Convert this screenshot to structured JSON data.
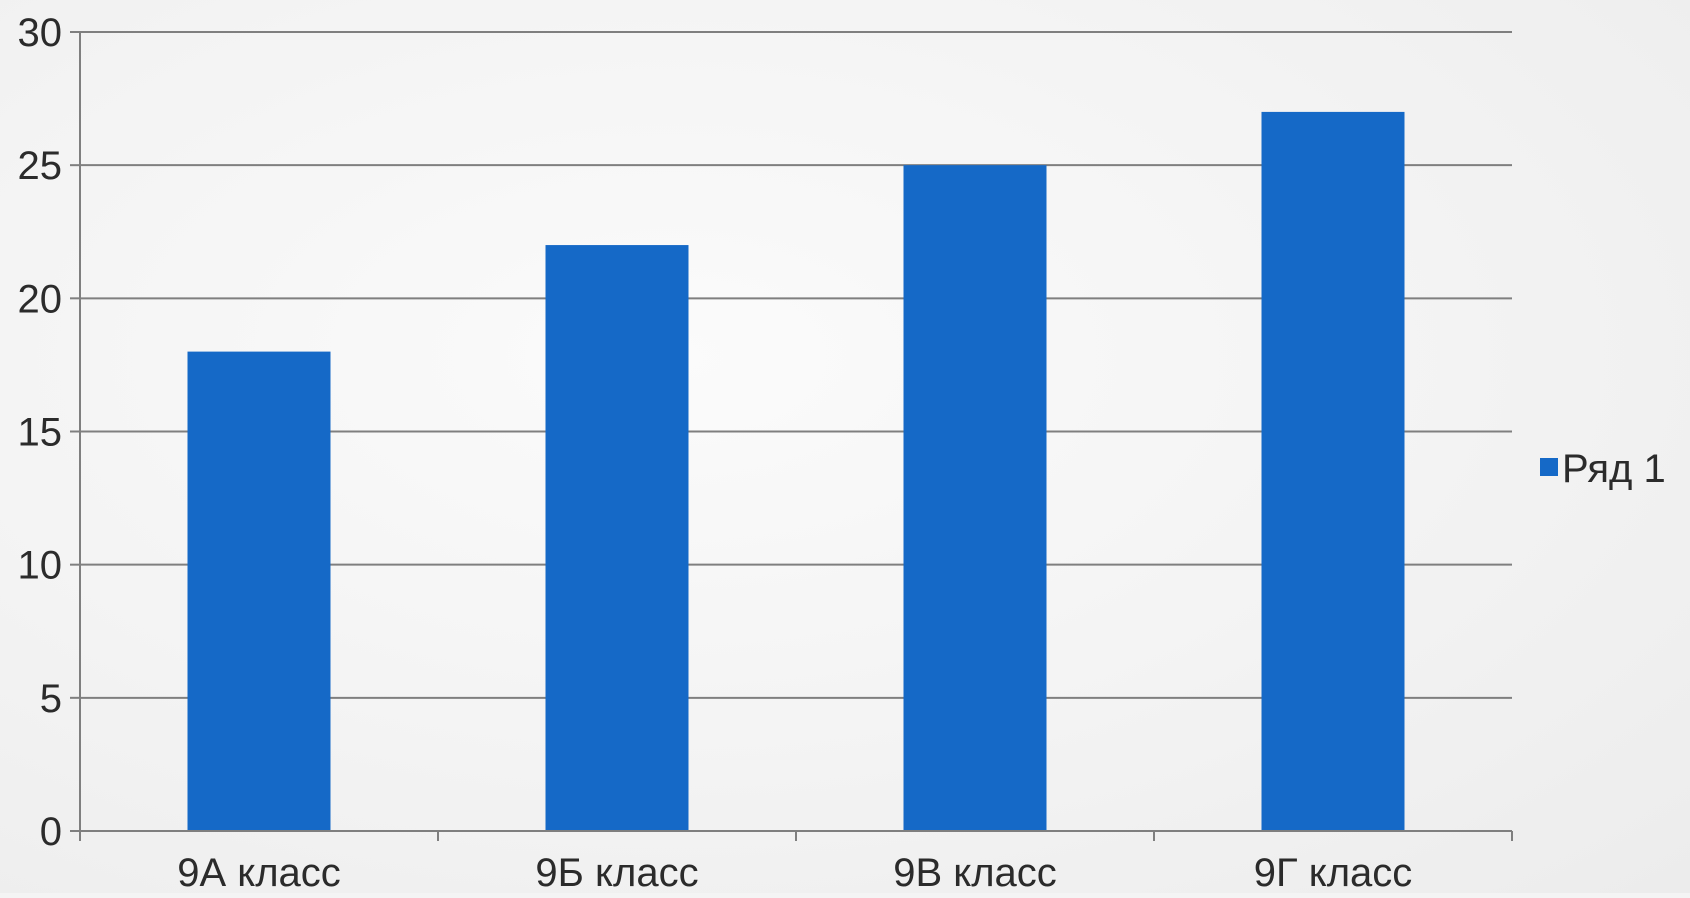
{
  "chart_data": {
    "type": "bar",
    "title": "",
    "xlabel": "",
    "ylabel": "",
    "categories": [
      "9А класс",
      "9Б класс",
      "9В класс",
      "9Г класс"
    ],
    "series": [
      {
        "name": "Ряд 1",
        "values": [
          18,
          22,
          25,
          27
        ],
        "color": "#1569c7"
      }
    ],
    "ylim": [
      0,
      30
    ],
    "yticks": [
      0,
      5,
      10,
      15,
      20,
      25,
      30
    ],
    "grid": true,
    "legend": {
      "position": "right",
      "entries": [
        "Ряд 1"
      ]
    }
  },
  "colors": {
    "bar": "#1569c7",
    "grid": "#7f7f7f",
    "axis": "#7f7f7f",
    "text": "#2b2b2b"
  }
}
